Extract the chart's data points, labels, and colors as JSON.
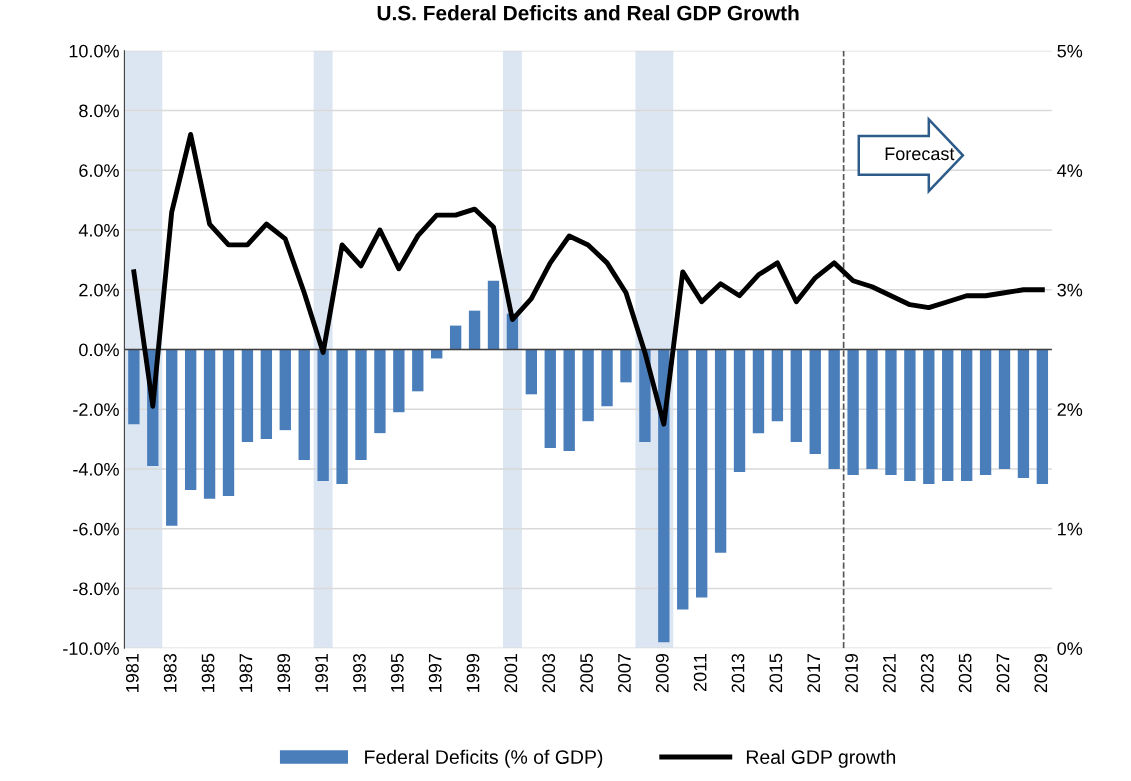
{
  "chart_data": {
    "type": "bar",
    "title": "U.S. Federal Deficits and Real GDP Growth",
    "x": [
      1981,
      1982,
      1983,
      1984,
      1985,
      1986,
      1987,
      1988,
      1989,
      1990,
      1991,
      1992,
      1993,
      1994,
      1995,
      1996,
      1997,
      1998,
      1999,
      2000,
      2001,
      2002,
      2003,
      2004,
      2005,
      2006,
      2007,
      2008,
      2009,
      2010,
      2011,
      2012,
      2013,
      2014,
      2015,
      2016,
      2017,
      2018,
      2019,
      2020,
      2021,
      2022,
      2023,
      2024,
      2025,
      2026,
      2027,
      2028,
      2029
    ],
    "series": [
      {
        "name": "Federal Deficits (% of GDP)",
        "color": "#4a7ebb",
        "values": [
          -2.5,
          -3.9,
          -5.9,
          -4.7,
          -5.0,
          -4.9,
          -3.1,
          -3.0,
          -2.7,
          -3.7,
          -4.4,
          -4.5,
          -3.7,
          -2.8,
          -2.1,
          -1.4,
          -0.3,
          0.8,
          1.3,
          2.3,
          1.2,
          -1.5,
          -3.3,
          -3.4,
          -2.4,
          -1.9,
          -1.1,
          -3.1,
          -9.8,
          -8.7,
          -8.3,
          -6.8,
          -4.1,
          -2.8,
          -2.4,
          -3.1,
          -3.5,
          -4.0,
          -4.2,
          -4.0,
          -4.2,
          -4.4,
          -4.5,
          -4.4,
          -4.4,
          -4.2,
          -4.0,
          -4.3,
          -4.5
        ]
      },
      {
        "name": "Real GDP growth",
        "type": "line",
        "color": "#000000",
        "values": [
          2.6,
          -1.9,
          4.6,
          7.2,
          4.2,
          3.5,
          3.5,
          4.2,
          3.7,
          1.9,
          -0.1,
          3.5,
          2.8,
          4.0,
          2.7,
          3.8,
          4.5,
          4.5,
          4.7,
          4.1,
          1.0,
          1.7,
          2.9,
          3.8,
          3.5,
          2.9,
          1.9,
          -0.1,
          -2.5,
          2.6,
          1.6,
          2.2,
          1.8,
          2.5,
          2.9,
          1.6,
          2.4,
          2.9,
          2.3,
          2.1,
          1.8,
          1.5,
          1.4,
          1.6,
          1.8,
          1.8,
          1.9,
          2.0,
          2.0
        ]
      }
    ],
    "xlim": [
      1980.5,
      2029.5
    ],
    "xticks": [
      1981,
      1983,
      1985,
      1987,
      1989,
      1991,
      1993,
      1995,
      1997,
      1999,
      2001,
      2003,
      2005,
      2007,
      2009,
      2011,
      2013,
      2015,
      2017,
      2019,
      2021,
      2023,
      2025,
      2027,
      2029
    ],
    "ylim": [
      -10,
      10
    ],
    "yticks": [
      {
        "value": -10,
        "label": "-10.0%"
      },
      {
        "value": -8,
        "label": "-8.0%"
      },
      {
        "value": -6,
        "label": "-6.0%"
      },
      {
        "value": -4,
        "label": "-4.0%"
      },
      {
        "value": -2,
        "label": "-2.0%"
      },
      {
        "value": 0,
        "label": "0.0%"
      },
      {
        "value": 2,
        "label": "2.0%"
      },
      {
        "value": 4,
        "label": "4.0%"
      },
      {
        "value": 6,
        "label": "6.0%"
      },
      {
        "value": 8,
        "label": "8.0%"
      },
      {
        "value": 10,
        "label": "10.0%"
      }
    ],
    "y2lim": [
      0,
      5
    ],
    "y2ticks": [
      {
        "value": 0,
        "label": "0%"
      },
      {
        "value": 1,
        "label": "1%"
      },
      {
        "value": 2,
        "label": "2%"
      },
      {
        "value": 3,
        "label": "3%"
      },
      {
        "value": 4,
        "label": "4%"
      },
      {
        "value": 5,
        "label": "5%"
      }
    ],
    "bands": [
      {
        "axis": "x",
        "from": 1980.5,
        "to": 1982.5,
        "color": "#dce6f2"
      },
      {
        "axis": "x",
        "from": 1990.5,
        "to": 1991.5,
        "color": "#dce6f2"
      },
      {
        "axis": "x",
        "from": 2000.5,
        "to": 2001.5,
        "color": "#dce6f2"
      },
      {
        "axis": "x",
        "from": 2007.5,
        "to": 2009.5,
        "color": "#dce6f2"
      }
    ],
    "ref_lines": [
      {
        "axis": "x",
        "value": 2018.5,
        "color": "#555555",
        "line_style": "dashed"
      }
    ],
    "annotations": [
      "Forecast"
    ],
    "grid": "y",
    "legend": "bottom",
    "line_style": "solid",
    "marker": "none"
  }
}
